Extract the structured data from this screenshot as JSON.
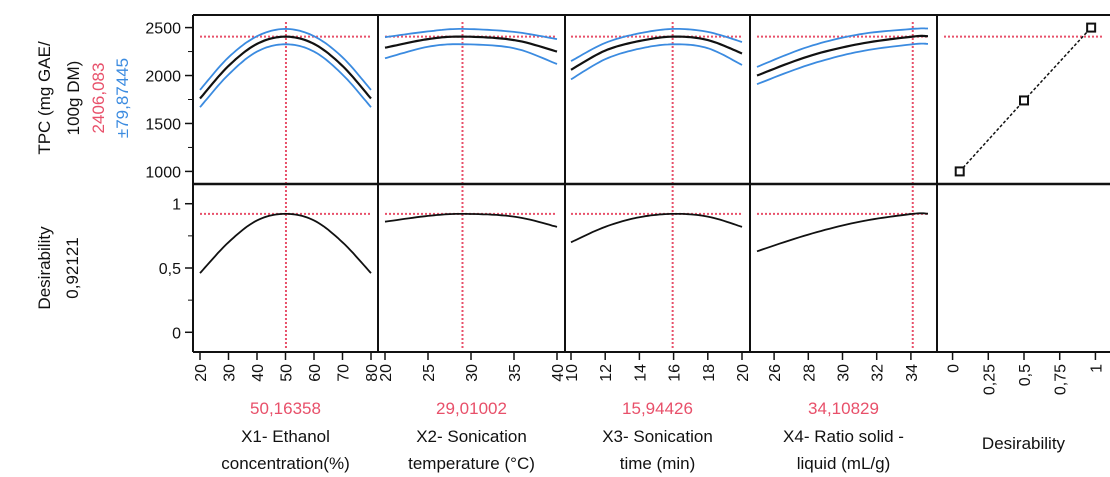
{
  "colors": {
    "mean": "#111111",
    "ci": "#3b8be0",
    "current": "#e8506a"
  },
  "rows": [
    {
      "label_lines": [
        "TPC (mg GAE/",
        "100g DM)"
      ],
      "value": "2406,083",
      "ci_text": "±79,87445",
      "y_range": [
        900,
        2600
      ],
      "ticks": [
        "1000",
        "1500",
        "2000",
        "2500"
      ]
    },
    {
      "label_lines": [
        "Desirability"
      ],
      "value": "0,92121",
      "y_range": [
        -0.13,
        1.13
      ],
      "ticks": [
        "0",
        "0,5",
        "1"
      ]
    }
  ],
  "chart_data": [
    {
      "type": "line",
      "panel": "X1",
      "x_range": [
        20,
        80
      ],
      "tick_labels": [
        "20",
        "30",
        "40",
        "50",
        "60",
        "70",
        "80"
      ],
      "current_value": "50,16358",
      "xlabel_lines": [
        "X1- Ethanol",
        "concentration(%)"
      ],
      "series": [
        {
          "x": [
            20,
            30,
            40,
            50,
            60,
            70,
            80
          ],
          "values": [
            1760,
            2100,
            2330,
            2406,
            2330,
            2100,
            1760
          ]
        },
        {
          "x": [
            20,
            30,
            40,
            50,
            60,
            70,
            80
          ],
          "values": [
            1850,
            2190,
            2410,
            2486,
            2410,
            2190,
            1850
          ]
        },
        {
          "x": [
            20,
            30,
            40,
            50,
            60,
            70,
            80
          ],
          "values": [
            1670,
            2010,
            2250,
            2326,
            2250,
            2010,
            1670
          ]
        },
        {
          "x": [
            20,
            30,
            40,
            50,
            60,
            70,
            80
          ],
          "values": [
            0.46,
            0.7,
            0.87,
            0.921,
            0.87,
            0.7,
            0.46
          ]
        }
      ]
    },
    {
      "type": "line",
      "panel": "X2",
      "x_range": [
        20,
        40
      ],
      "tick_labels": [
        "20",
        "25",
        "30",
        "35",
        "40"
      ],
      "current_value": "29,01002",
      "xlabel_lines": [
        "X2- Sonication",
        "temperature (°C)"
      ],
      "series": [
        {
          "x": [
            20,
            25,
            29,
            35,
            40
          ],
          "values": [
            2290,
            2380,
            2406,
            2370,
            2250
          ]
        },
        {
          "x": [
            20,
            25,
            29,
            35,
            40
          ],
          "values": [
            2400,
            2460,
            2486,
            2455,
            2380
          ]
        },
        {
          "x": [
            20,
            25,
            29,
            35,
            40
          ],
          "values": [
            2180,
            2300,
            2326,
            2285,
            2120
          ]
        },
        {
          "x": [
            20,
            25,
            29,
            35,
            40
          ],
          "values": [
            0.86,
            0.905,
            0.921,
            0.9,
            0.82
          ]
        }
      ]
    },
    {
      "type": "line",
      "panel": "X3",
      "x_range": [
        10,
        20
      ],
      "tick_labels": [
        "10",
        "12",
        "14",
        "16",
        "18",
        "20"
      ],
      "current_value": "15,94426",
      "xlabel_lines": [
        "X3- Sonication",
        "time (min)"
      ],
      "series": [
        {
          "x": [
            10,
            12,
            14,
            16,
            18,
            20
          ],
          "values": [
            2060,
            2260,
            2360,
            2406,
            2370,
            2230
          ]
        },
        {
          "x": [
            10,
            12,
            14,
            16,
            18,
            20
          ],
          "values": [
            2150,
            2340,
            2440,
            2486,
            2455,
            2350
          ]
        },
        {
          "x": [
            10,
            12,
            14,
            16,
            18,
            20
          ],
          "values": [
            1960,
            2170,
            2280,
            2326,
            2285,
            2110
          ]
        },
        {
          "x": [
            10,
            12,
            14,
            16,
            18,
            20
          ],
          "values": [
            0.7,
            0.82,
            0.895,
            0.921,
            0.9,
            0.82
          ]
        }
      ]
    },
    {
      "type": "line",
      "panel": "X4",
      "x_range": [
        25,
        35
      ],
      "tick_labels": [
        "26",
        "28",
        "30",
        "32",
        "34"
      ],
      "current_value": "34,10829",
      "xlabel_lines": [
        "X4- Ratio solid -",
        "liquid (mL/g)"
      ],
      "series": [
        {
          "x": [
            25,
            28,
            31,
            34.1,
            35
          ],
          "values": [
            2000,
            2200,
            2330,
            2406,
            2410
          ]
        },
        {
          "x": [
            25,
            28,
            31,
            34.1,
            35
          ],
          "values": [
            2090,
            2300,
            2430,
            2486,
            2490
          ]
        },
        {
          "x": [
            25,
            28,
            31,
            34.1,
            35
          ],
          "values": [
            1910,
            2110,
            2250,
            2326,
            2330
          ]
        },
        {
          "x": [
            25,
            28,
            31,
            34.1,
            35
          ],
          "values": [
            0.63,
            0.76,
            0.86,
            0.921,
            0.922
          ]
        }
      ]
    },
    {
      "type": "line",
      "panel": "Desirability",
      "x_range": [
        -0.06,
        1.06
      ],
      "tick_labels": [
        "0",
        "0,25",
        "0,5",
        "0,75",
        "1"
      ],
      "xlabel_lines": [
        "Desirability"
      ],
      "series": [
        {
          "x": [
            0.05,
            0.5,
            0.97
          ],
          "values": [
            1000,
            1740,
            2500
          ]
        }
      ]
    }
  ]
}
